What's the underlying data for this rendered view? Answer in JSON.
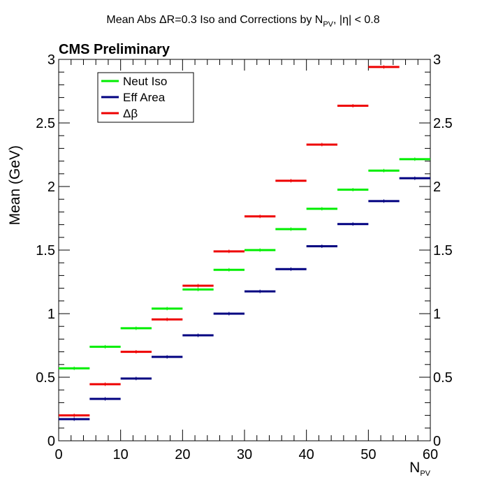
{
  "chart_data": {
    "type": "line",
    "title_parts": {
      "pre": "Mean Abs ",
      "delta": "Δ",
      "mid": "R=0.3 Iso and Corrections by N",
      "sub": "PV",
      "post": ", |η| < 0.8"
    },
    "label": "CMS Preliminary",
    "xlabel": {
      "main": "N",
      "sub": "PV"
    },
    "ylabel": "Mean (GeV)",
    "xlim": [
      0,
      60
    ],
    "ylim": [
      0,
      3
    ],
    "x_ticks": [
      "0",
      "10",
      "20",
      "30",
      "40",
      "50",
      "60"
    ],
    "y_ticks": [
      "0",
      "0.5",
      "1",
      "1.5",
      "2",
      "2.5",
      "3"
    ],
    "bin_edges": [
      0,
      5,
      10,
      15,
      20,
      25,
      30,
      35,
      40,
      45,
      50,
      55,
      60
    ],
    "legend_position": "top-left",
    "series": [
      {
        "name": "Neut Iso",
        "color": "#00ee00",
        "values": [
          0.57,
          0.74,
          0.885,
          1.04,
          1.19,
          1.345,
          1.5,
          1.665,
          1.825,
          1.975,
          2.125,
          2.215
        ]
      },
      {
        "name": "Eff Area",
        "color": "#000080",
        "values": [
          0.17,
          0.33,
          0.49,
          0.66,
          0.83,
          1.0,
          1.175,
          1.35,
          1.53,
          1.705,
          1.885,
          2.065
        ]
      },
      {
        "name": "Δβ",
        "color": "#ee0000",
        "values": [
          0.2,
          0.445,
          0.7,
          0.955,
          1.22,
          1.49,
          1.765,
          2.045,
          2.33,
          2.635,
          2.94,
          null
        ]
      }
    ]
  }
}
